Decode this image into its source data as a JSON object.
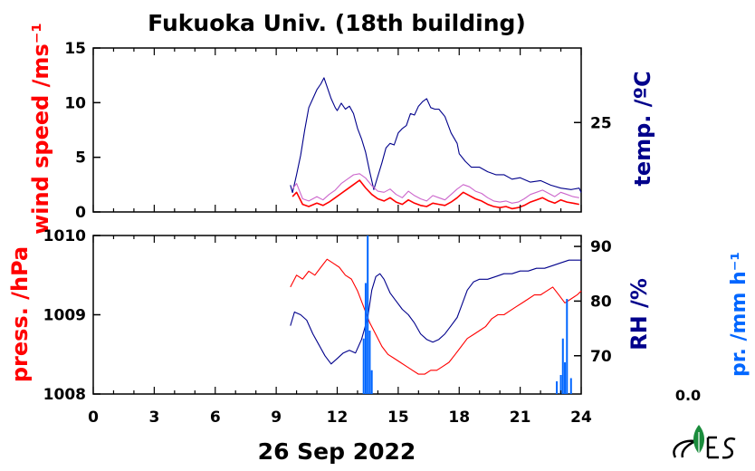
{
  "chart_data": [
    {
      "type": "line",
      "title": "Fukuoka Univ. (18th building)",
      "xlabel": "26 Sep 2022",
      "x_ticks": [
        "0",
        "3",
        "6",
        "9",
        "12",
        "15",
        "18",
        "21",
        "24"
      ],
      "xlim": [
        0,
        24
      ],
      "left_axis": {
        "label": "wind speed /ms⁻¹",
        "ticks": [
          "0",
          "5",
          "10",
          "15"
        ],
        "lim": [
          0,
          15
        ],
        "color": "#ff0000"
      },
      "right_axis": {
        "label": "temp. /ºC",
        "ticks": [
          "25"
        ],
        "lim": [
          19,
          30
        ],
        "color": "#00008b"
      },
      "series": [
        {
          "axis": "right",
          "color": "#00008b",
          "x": [
            9.7,
            9.8,
            10.0,
            10.2,
            10.4,
            10.6,
            10.8,
            11.0,
            11.2,
            11.35,
            11.5,
            11.7,
            11.9,
            12.0,
            12.2,
            12.4,
            12.6,
            12.8,
            13.0,
            13.2,
            13.4,
            13.6,
            13.8,
            14.0,
            14.2,
            14.4,
            14.6,
            14.8,
            15.0,
            15.2,
            15.4,
            15.6,
            15.8,
            16.0,
            16.2,
            16.4,
            16.6,
            16.8,
            17.0,
            17.3,
            17.6,
            17.9,
            18.0,
            18.3,
            18.6,
            19.0,
            19.4,
            19.8,
            20.2,
            20.6,
            21.0,
            21.5,
            22.0,
            22.5,
            23.0,
            23.5,
            23.9,
            24.0
          ],
          "y": [
            20.8,
            20.3,
            21.5,
            22.8,
            24.5,
            26.0,
            26.6,
            27.2,
            27.6,
            28.0,
            27.4,
            26.6,
            26.0,
            25.8,
            26.3,
            25.9,
            26.1,
            25.6,
            24.6,
            23.9,
            23.0,
            21.7,
            20.5,
            21.4,
            22.3,
            23.3,
            23.6,
            23.5,
            24.3,
            24.6,
            24.8,
            25.6,
            25.5,
            26.1,
            26.4,
            26.6,
            26.0,
            25.9,
            25.9,
            25.4,
            24.3,
            23.6,
            22.9,
            22.4,
            22.0,
            22.0,
            21.7,
            21.5,
            21.5,
            21.2,
            21.3,
            21.0,
            21.1,
            20.8,
            20.6,
            20.5,
            20.6,
            20.3
          ]
        },
        {
          "axis": "left",
          "color": "#ff0000",
          "x": [
            9.8,
            10.0,
            10.3,
            10.6,
            11.0,
            11.3,
            11.6,
            11.9,
            12.2,
            12.5,
            12.8,
            13.1,
            13.4,
            13.7,
            14.0,
            14.3,
            14.6,
            14.9,
            15.2,
            15.5,
            15.8,
            16.1,
            16.4,
            16.7,
            17.0,
            17.3,
            17.6,
            17.9,
            18.2,
            18.5,
            18.8,
            19.1,
            19.4,
            19.7,
            20.0,
            20.3,
            20.6,
            20.9,
            21.2,
            21.5,
            21.8,
            22.1,
            22.4,
            22.7,
            23.0,
            23.3,
            23.6,
            23.9
          ],
          "y": [
            1.4,
            1.8,
            0.7,
            0.5,
            0.8,
            0.6,
            0.9,
            1.3,
            1.7,
            2.1,
            2.5,
            2.9,
            2.2,
            1.6,
            1.2,
            1.0,
            1.3,
            0.9,
            0.7,
            1.1,
            0.8,
            0.6,
            0.5,
            0.8,
            0.7,
            0.6,
            0.9,
            1.3,
            1.8,
            1.5,
            1.2,
            1.0,
            0.7,
            0.5,
            0.4,
            0.5,
            0.3,
            0.4,
            0.6,
            0.9,
            1.1,
            1.3,
            1.0,
            0.8,
            1.1,
            0.9,
            0.8,
            0.7
          ]
        },
        {
          "axis": "left",
          "color": "#cc66cc",
          "x": [
            9.8,
            10.0,
            10.3,
            10.6,
            11.0,
            11.3,
            11.6,
            11.9,
            12.2,
            12.5,
            12.8,
            13.1,
            13.4,
            13.7,
            14.0,
            14.3,
            14.6,
            14.9,
            15.2,
            15.5,
            15.8,
            16.1,
            16.4,
            16.7,
            17.0,
            17.3,
            17.6,
            17.9,
            18.2,
            18.5,
            18.8,
            19.1,
            19.4,
            19.7,
            20.0,
            20.3,
            20.6,
            20.9,
            21.2,
            21.5,
            21.8,
            22.1,
            22.4,
            22.7,
            23.0,
            23.3,
            23.6,
            23.9
          ],
          "y": [
            2.1,
            2.6,
            1.2,
            1.0,
            1.4,
            1.1,
            1.6,
            2.0,
            2.6,
            3.0,
            3.4,
            3.5,
            3.1,
            2.4,
            1.9,
            1.8,
            2.1,
            1.6,
            1.3,
            1.9,
            1.5,
            1.2,
            1.0,
            1.5,
            1.3,
            1.1,
            1.6,
            2.1,
            2.5,
            2.3,
            1.9,
            1.7,
            1.3,
            1.0,
            0.9,
            1.0,
            0.8,
            0.9,
            1.2,
            1.6,
            1.8,
            2.0,
            1.7,
            1.4,
            1.8,
            1.6,
            1.4,
            1.3
          ]
        }
      ]
    },
    {
      "type": "line",
      "xlabel": "26 Sep 2022",
      "x_ticks": [
        "0",
        "3",
        "6",
        "9",
        "12",
        "15",
        "18",
        "21",
        "24"
      ],
      "xlim": [
        0,
        24
      ],
      "left_axis": {
        "label": "press. /hPa",
        "ticks": [
          "1008",
          "1009",
          "1010"
        ],
        "lim": [
          1008,
          1010
        ],
        "color": "#ff0000"
      },
      "right_axis": {
        "label": "RH /%",
        "ticks": [
          "70",
          "80",
          "90"
        ],
        "lim": [
          63,
          92
        ],
        "color": "#00008b"
      },
      "precip_axis": {
        "label": "pr. /mm h⁻¹",
        "value_label": "0.0",
        "lim": [
          0,
          1
        ],
        "color": "#0066ff"
      },
      "series": [
        {
          "axis": "left",
          "color": "#ff0000",
          "x": [
            9.7,
            10.0,
            10.3,
            10.6,
            10.9,
            11.2,
            11.5,
            11.8,
            12.1,
            12.4,
            12.7,
            13.0,
            13.3,
            13.6,
            13.9,
            14.2,
            14.5,
            14.8,
            15.1,
            15.4,
            15.7,
            16.0,
            16.3,
            16.6,
            16.9,
            17.2,
            17.5,
            17.8,
            18.1,
            18.4,
            18.7,
            19.0,
            19.3,
            19.6,
            19.9,
            20.2,
            20.5,
            20.8,
            21.1,
            21.4,
            21.7,
            22.0,
            22.3,
            22.6,
            22.9,
            23.2,
            23.5,
            23.8,
            24.0
          ],
          "y": [
            1009.35,
            1009.5,
            1009.45,
            1009.55,
            1009.5,
            1009.6,
            1009.7,
            1009.65,
            1009.6,
            1009.5,
            1009.45,
            1009.3,
            1009.1,
            1008.9,
            1008.75,
            1008.6,
            1008.5,
            1008.45,
            1008.4,
            1008.35,
            1008.3,
            1008.25,
            1008.25,
            1008.3,
            1008.3,
            1008.35,
            1008.4,
            1008.5,
            1008.6,
            1008.7,
            1008.75,
            1008.8,
            1008.85,
            1008.95,
            1009.0,
            1009.0,
            1009.05,
            1009.1,
            1009.15,
            1009.2,
            1009.25,
            1009.25,
            1009.3,
            1009.35,
            1009.25,
            1009.15,
            1009.2,
            1009.25,
            1009.3
          ]
        },
        {
          "axis": "right",
          "color": "#00008b",
          "x": [
            9.7,
            9.9,
            10.2,
            10.5,
            10.8,
            11.1,
            11.4,
            11.7,
            12.0,
            12.3,
            12.6,
            12.9,
            13.2,
            13.5,
            13.7,
            13.9,
            14.1,
            14.3,
            14.6,
            14.9,
            15.2,
            15.5,
            15.8,
            16.1,
            16.4,
            16.7,
            17.0,
            17.3,
            17.6,
            17.9,
            18.1,
            18.4,
            18.7,
            19.0,
            19.4,
            19.8,
            20.2,
            20.6,
            21.0,
            21.4,
            21.8,
            22.2,
            22.6,
            23.0,
            23.4,
            23.8,
            24.0
          ],
          "y": [
            75.5,
            78.0,
            77.5,
            76.5,
            74.0,
            72.0,
            70.0,
            68.5,
            69.5,
            70.5,
            71.0,
            70.5,
            73.0,
            77.0,
            82.0,
            84.5,
            85.0,
            84.0,
            81.5,
            80.0,
            78.5,
            77.5,
            76.0,
            74.0,
            73.0,
            72.5,
            73.0,
            74.0,
            75.5,
            77.0,
            79.0,
            82.0,
            83.5,
            84.0,
            84.0,
            84.5,
            85.0,
            85.0,
            85.5,
            85.5,
            86.0,
            86.0,
            86.5,
            87.0,
            87.5,
            87.5,
            87.5
          ]
        },
        {
          "axis": "precip",
          "color": "#0066ff",
          "style": "bars",
          "x": [
            13.3,
            13.4,
            13.5,
            13.6,
            13.7,
            22.8,
            23.0,
            23.1,
            23.2,
            23.3,
            23.5
          ],
          "y": [
            0.35,
            0.7,
            1.0,
            0.4,
            0.15,
            0.08,
            0.12,
            0.35,
            0.2,
            0.6,
            0.1
          ]
        }
      ]
    }
  ]
}
